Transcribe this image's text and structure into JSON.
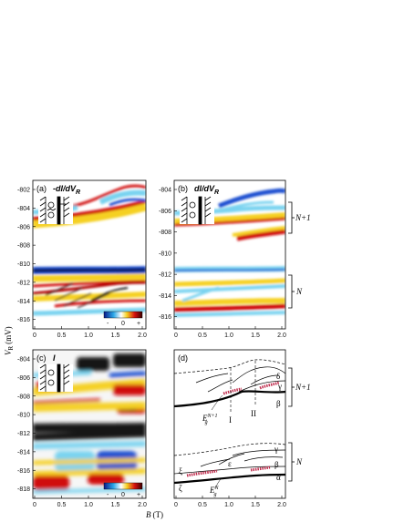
{
  "panels": {
    "a": {
      "label": "(a)",
      "quantity": "-dI/dV",
      "subscript": "R",
      "yticks": [
        "-802",
        "-804",
        "-806",
        "-808",
        "-810",
        "-812",
        "-814",
        "-816"
      ],
      "xticks": [
        "0",
        "0.5",
        "1.0",
        "1.5",
        "2.0"
      ],
      "colorbar": {
        "minus": "-",
        "zero": "0",
        "plus": "+"
      }
    },
    "b": {
      "label": "(b)",
      "quantity": "dI/dV",
      "subscript": "R",
      "yticks": [
        "-804",
        "-806",
        "-808",
        "-810",
        "-812",
        "-814",
        "-816"
      ],
      "xticks": [
        "0",
        "0.5",
        "1.0",
        "1.5",
        "2.0"
      ],
      "brackets": [
        "N+1",
        "N"
      ]
    },
    "c": {
      "label": "(c)",
      "quantity": "I",
      "yticks": [
        "-804",
        "-806",
        "-808",
        "-810",
        "-812",
        "-814",
        "-816",
        "-818"
      ],
      "xticks": [
        "0",
        "0.5",
        "1.0",
        "1.5",
        "2.0"
      ],
      "colorbar": {
        "minus": "-",
        "zero": "0",
        "plus": "+"
      }
    },
    "d": {
      "label": "(d)",
      "xticks": [
        "0",
        "0.5",
        "1.0",
        "1.5",
        "2.0"
      ],
      "brackets": [
        "N+1",
        "N"
      ],
      "annotations": {
        "delta": "δ",
        "gamma_top": "γ",
        "beta_top": "β",
        "roman_1": "I",
        "roman_2": "II",
        "eg_top": "E",
        "eg_top_sup": "N+1",
        "eg_top_sub": "g",
        "gamma_bot": "γ",
        "epsilon": "ε",
        "beta_bot": "β",
        "xi": "ξ",
        "alpha": "α",
        "zeta": "ζ",
        "eg_bot": "E",
        "eg_bot_sup": "N",
        "eg_bot_sub": "g"
      }
    }
  },
  "axes": {
    "ylabel": "V",
    "ylabel_sub": "R",
    "ylabel_unit": "(mV)",
    "xlabel": "B",
    "xlabel_unit": "(T)"
  },
  "colors": {
    "positive_dark": "#7a0000",
    "positive": "#d01010",
    "yellow": "#f5d020",
    "cyan": "#79d3f0",
    "blue": "#1f4fd0",
    "black_band": "#151515"
  }
}
